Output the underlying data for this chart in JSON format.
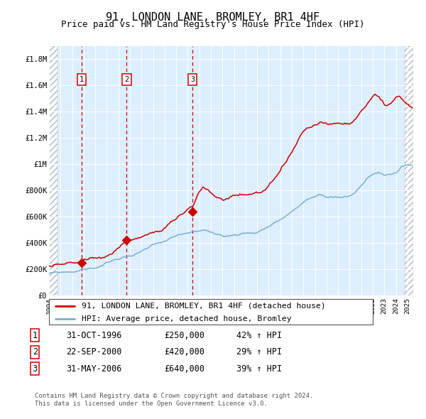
{
  "title": "91, LONDON LANE, BROMLEY, BR1 4HF",
  "subtitle": "Price paid vs. HM Land Registry's House Price Index (HPI)",
  "ylim": [
    0,
    1900000
  ],
  "yticks": [
    0,
    200000,
    400000,
    600000,
    800000,
    1000000,
    1200000,
    1400000,
    1600000,
    1800000
  ],
  "ytick_labels": [
    "£0",
    "£200K",
    "£400K",
    "£600K",
    "£800K",
    "£1M",
    "£1.2M",
    "£1.4M",
    "£1.6M",
    "£1.8M"
  ],
  "xlim_start": 1994.0,
  "xlim_end": 2025.5,
  "xtick_years": [
    1994,
    1995,
    1996,
    1997,
    1998,
    1999,
    2000,
    2001,
    2002,
    2003,
    2004,
    2005,
    2006,
    2007,
    2008,
    2009,
    2010,
    2011,
    2012,
    2013,
    2014,
    2015,
    2016,
    2017,
    2018,
    2019,
    2020,
    2021,
    2022,
    2023,
    2024,
    2025
  ],
  "sale_dates": [
    1996.833,
    2000.722,
    2006.416
  ],
  "sale_prices": [
    250000,
    420000,
    640000
  ],
  "sale_labels": [
    "1",
    "2",
    "3"
  ],
  "sale_date_str": [
    "31-OCT-1996",
    "22-SEP-2000",
    "31-MAY-2006"
  ],
  "sale_price_str": [
    "£250,000",
    "£420,000",
    "£640,000"
  ],
  "sale_hpi_str": [
    "42% ↑ HPI",
    "29% ↑ HPI",
    "39% ↑ HPI"
  ],
  "red_line_color": "#cc0000",
  "blue_line_color": "#7bafd4",
  "bg_plot_color": "#ddeeff",
  "grid_color": "#ffffff",
  "legend_label_red": "91, LONDON LANE, BROMLEY, BR1 4HF (detached house)",
  "legend_label_blue": "HPI: Average price, detached house, Bromley",
  "footnote1": "Contains HM Land Registry data © Crown copyright and database right 2024.",
  "footnote2": "This data is licensed under the Open Government Licence v3.0.",
  "hpi_anchors_t": [
    1994.0,
    1995.0,
    1996.0,
    1997.0,
    1998.0,
    1999.0,
    2000.0,
    2001.0,
    2002.0,
    2003.0,
    2004.0,
    2005.0,
    2006.0,
    2007.0,
    2007.5,
    2008.5,
    2009.5,
    2010.0,
    2011.0,
    2012.0,
    2013.0,
    2014.0,
    2014.5,
    2015.5,
    2016.0,
    2016.5,
    2017.0,
    2017.5,
    2018.0,
    2019.0,
    2020.0,
    2020.5,
    2021.0,
    2021.5,
    2022.0,
    2022.5,
    2023.0,
    2023.5,
    2024.0,
    2024.5,
    2025.0,
    2025.4
  ],
  "hpi_anchors_v": [
    165000,
    168000,
    175000,
    195000,
    205000,
    240000,
    270000,
    295000,
    330000,
    360000,
    375000,
    405000,
    435000,
    460000,
    465000,
    430000,
    430000,
    450000,
    465000,
    470000,
    505000,
    560000,
    590000,
    660000,
    695000,
    720000,
    720000,
    720000,
    705000,
    710000,
    725000,
    760000,
    810000,
    860000,
    890000,
    900000,
    870000,
    880000,
    890000,
    940000,
    960000,
    955000
  ],
  "red_anchors_t": [
    1994.0,
    1995.5,
    1996.0,
    1996.833,
    1997.5,
    1998.5,
    1999.5,
    2000.0,
    2000.722,
    2001.5,
    2002.5,
    2003.5,
    2004.0,
    2004.5,
    2005.0,
    2005.5,
    2006.0,
    2006.416,
    2007.0,
    2007.3,
    2007.5,
    2008.0,
    2008.5,
    2009.0,
    2009.5,
    2010.0,
    2010.5,
    2011.0,
    2011.5,
    2012.0,
    2012.5,
    2013.0,
    2013.5,
    2014.0,
    2014.5,
    2015.0,
    2015.5,
    2016.0,
    2016.5,
    2017.0,
    2017.5,
    2018.0,
    2018.5,
    2019.0,
    2019.5,
    2020.0,
    2020.5,
    2021.0,
    2021.5,
    2022.0,
    2022.2,
    2022.5,
    2022.8,
    2023.0,
    2023.3,
    2023.7,
    2024.0,
    2024.3,
    2024.7,
    2025.0,
    2025.4
  ],
  "red_anchors_v": [
    225000,
    230000,
    235000,
    250000,
    270000,
    285000,
    310000,
    350000,
    420000,
    435000,
    455000,
    475000,
    500000,
    525000,
    555000,
    590000,
    620000,
    640000,
    760000,
    795000,
    790000,
    750000,
    700000,
    690000,
    710000,
    725000,
    735000,
    740000,
    750000,
    760000,
    780000,
    810000,
    850000,
    900000,
    960000,
    1030000,
    1110000,
    1185000,
    1215000,
    1225000,
    1235000,
    1220000,
    1220000,
    1220000,
    1215000,
    1230000,
    1270000,
    1330000,
    1380000,
    1450000,
    1475000,
    1460000,
    1430000,
    1400000,
    1390000,
    1395000,
    1420000,
    1430000,
    1380000,
    1360000,
    1340000
  ]
}
